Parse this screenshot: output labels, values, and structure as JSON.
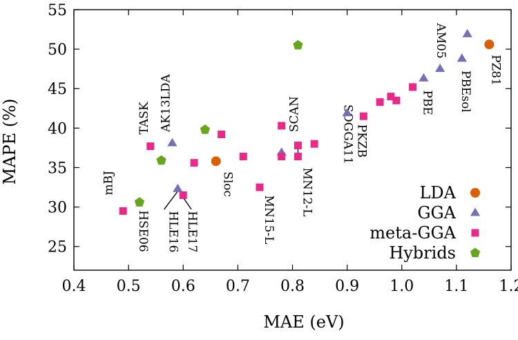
{
  "chart_data": {
    "type": "scatter",
    "xlabel": "MAE (eV)",
    "ylabel": "MAPE (%)",
    "xlim": [
      0.4,
      1.2
    ],
    "ylim": [
      22,
      55
    ],
    "xticks": [
      "0.4",
      "0.5",
      "0.6",
      "0.7",
      "0.8",
      "0.9",
      "1.0",
      "1.1",
      "1.2"
    ],
    "xtick_values": [
      0.4,
      0.5,
      0.6,
      0.7,
      0.8,
      0.9,
      1.0,
      1.1,
      1.2
    ],
    "yticks": [
      "25",
      "30",
      "35",
      "40",
      "45",
      "50",
      "55"
    ],
    "ytick_values": [
      25,
      30,
      35,
      40,
      45,
      50,
      55
    ],
    "grid": false,
    "legend_position": "bottom-right",
    "series": [
      {
        "name": "LDA",
        "marker": "circle",
        "color": "#d95f02",
        "points": [
          {
            "x": 0.66,
            "y": 35.8
          },
          {
            "x": 1.16,
            "y": 50.6
          }
        ]
      },
      {
        "name": "GGA",
        "marker": "triangle",
        "color": "#7570b3",
        "points": [
          {
            "x": 0.58,
            "y": 38.1
          },
          {
            "x": 0.59,
            "y": 32.3
          },
          {
            "x": 0.78,
            "y": 36.9
          },
          {
            "x": 0.9,
            "y": 41.9
          },
          {
            "x": 1.04,
            "y": 46.3
          },
          {
            "x": 1.07,
            "y": 47.5
          },
          {
            "x": 1.11,
            "y": 48.8
          },
          {
            "x": 1.12,
            "y": 51.9
          }
        ]
      },
      {
        "name": "meta-GGA",
        "marker": "square",
        "color": "#e7298a",
        "points": [
          {
            "x": 0.49,
            "y": 29.5
          },
          {
            "x": 0.54,
            "y": 37.7
          },
          {
            "x": 0.6,
            "y": 31.5
          },
          {
            "x": 0.62,
            "y": 35.6
          },
          {
            "x": 0.67,
            "y": 39.2
          },
          {
            "x": 0.71,
            "y": 36.4
          },
          {
            "x": 0.74,
            "y": 32.5
          },
          {
            "x": 0.78,
            "y": 36.4
          },
          {
            "x": 0.78,
            "y": 40.3
          },
          {
            "x": 0.81,
            "y": 37.8
          },
          {
            "x": 0.81,
            "y": 36.4
          },
          {
            "x": 0.84,
            "y": 38.0
          },
          {
            "x": 0.93,
            "y": 41.5
          },
          {
            "x": 0.96,
            "y": 43.3
          },
          {
            "x": 0.98,
            "y": 44.0
          },
          {
            "x": 0.99,
            "y": 43.5
          },
          {
            "x": 1.02,
            "y": 45.2
          }
        ]
      },
      {
        "name": "Hybrids",
        "marker": "pentagon",
        "color": "#66a61e",
        "points": [
          {
            "x": 0.52,
            "y": 30.6
          },
          {
            "x": 0.56,
            "y": 35.9
          },
          {
            "x": 0.64,
            "y": 39.8
          },
          {
            "x": 0.81,
            "y": 50.5
          }
        ]
      }
    ],
    "annotations": [
      {
        "text": "mBJ",
        "x": 0.47,
        "y": 31.5,
        "rotation": -90,
        "anchor": "start"
      },
      {
        "text": "HSE06",
        "x": 0.52,
        "y": 29.6,
        "rotation": 90,
        "anchor": "start"
      },
      {
        "text": "TASK",
        "x": 0.535,
        "y": 39.2,
        "rotation": -90,
        "anchor": "start"
      },
      {
        "text": "AK13LDA",
        "x": 0.575,
        "y": 39.5,
        "rotation": -90,
        "anchor": "start"
      },
      {
        "text": "HLE16",
        "x": 0.575,
        "y": 29.5,
        "rotation": 90,
        "anchor": "start"
      },
      {
        "text": "HLE17",
        "x": 0.61,
        "y": 29.5,
        "rotation": 90,
        "anchor": "start"
      },
      {
        "text": "Sloc",
        "x": 0.675,
        "y": 34.5,
        "rotation": 90,
        "anchor": "start"
      },
      {
        "text": "MN15-L",
        "x": 0.75,
        "y": 31.5,
        "rotation": 90,
        "anchor": "start"
      },
      {
        "text": "SCAN",
        "x": 0.81,
        "y": 39.5,
        "rotation": -90,
        "anchor": "start"
      },
      {
        "text": "MN12-L",
        "x": 0.82,
        "y": 35.0,
        "rotation": 90,
        "anchor": "start"
      },
      {
        "text": "SOGGA11",
        "x": 0.895,
        "y": 43.0,
        "rotation": 90,
        "anchor": "start"
      },
      {
        "text": "PKZB",
        "x": 0.92,
        "y": 40.5,
        "rotation": 90,
        "anchor": "start"
      },
      {
        "text": "PBE",
        "x": 1.04,
        "y": 44.8,
        "rotation": 90,
        "anchor": "start"
      },
      {
        "text": "AM05",
        "x": 1.065,
        "y": 48.8,
        "rotation": 90,
        "anchor": "end"
      },
      {
        "text": "PBEsol",
        "x": 1.11,
        "y": 47.3,
        "rotation": 90,
        "anchor": "start"
      },
      {
        "text": "PZ81",
        "x": 1.165,
        "y": 49.3,
        "rotation": 90,
        "anchor": "start"
      }
    ],
    "leader_lines": [
      {
        "x1": 0.59,
        "y1": 32.0,
        "x2": 0.565,
        "y2": 29.7
      },
      {
        "x1": 0.6,
        "y1": 31.2,
        "x2": 0.615,
        "y2": 29.7
      },
      {
        "x1": 0.81,
        "y1": 37.4,
        "x2": 0.81,
        "y2": 36.8
      }
    ]
  }
}
